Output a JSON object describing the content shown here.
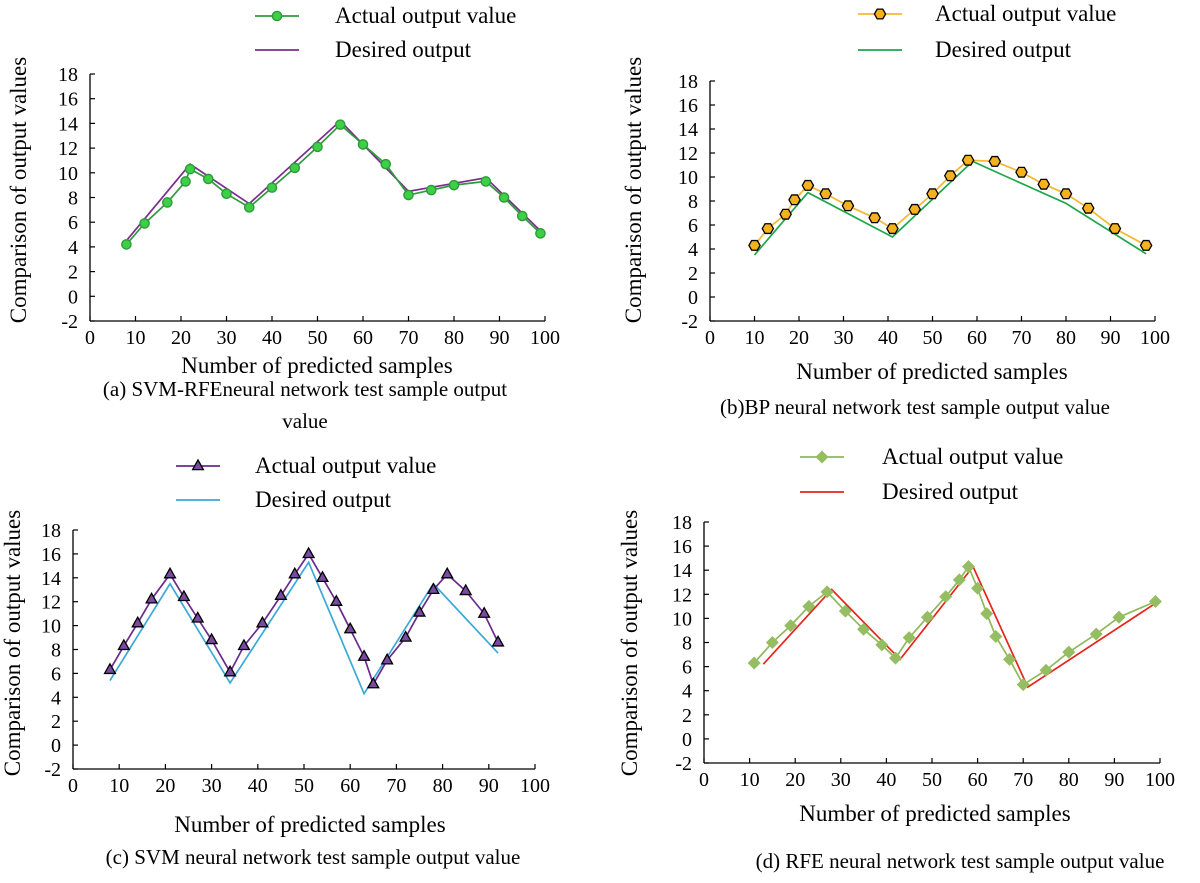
{
  "chart_data": [
    {
      "type": "line",
      "xlabel": "Number of predicted samples",
      "ylabel": "Comparison of output values",
      "xlim": [
        0,
        100
      ],
      "ylim": [
        -2,
        18
      ],
      "xticks": [
        "0",
        "10",
        "20",
        "30",
        "40",
        "50",
        "60",
        "70",
        "80",
        "90",
        "100"
      ],
      "yticks": [
        "-2",
        "0",
        "2",
        "4",
        "6",
        "8",
        "10",
        "12",
        "14",
        "16",
        "18"
      ],
      "grid": false,
      "legend_position": "top-center",
      "caption_lines": [
        "(a) SVM-RFEneural network test sample output",
        "value"
      ],
      "series": [
        {
          "name": "Actual output value",
          "color": "#2e9b3b",
          "marker": "circle",
          "marker_fill": "#3dd047",
          "x": [
            8,
            12,
            17,
            21,
            22,
            26,
            30,
            35,
            40,
            45,
            50,
            55,
            60,
            65,
            70,
            75,
            80,
            87,
            91,
            95,
            99
          ],
          "y": [
            4.2,
            5.9,
            7.6,
            9.3,
            10.3,
            9.5,
            8.3,
            7.2,
            8.8,
            10.4,
            12.1,
            13.9,
            12.3,
            10.7,
            8.2,
            8.6,
            9.0,
            9.3,
            8.0,
            6.5,
            5.1
          ]
        },
        {
          "name": "Desired output",
          "color": "#7b2d8e",
          "marker": "none",
          "x": [
            8,
            22,
            35,
            55,
            70,
            87,
            99
          ],
          "y": [
            4.5,
            10.7,
            7.5,
            14.2,
            8.5,
            9.6,
            5.3
          ]
        }
      ]
    },
    {
      "type": "line",
      "xlabel": "Number of predicted samples",
      "ylabel": "Comparison of output values",
      "xlim": [
        0,
        100
      ],
      "ylim": [
        -2,
        18
      ],
      "xticks": [
        "0",
        "10",
        "20",
        "30",
        "40",
        "50",
        "60",
        "70",
        "80",
        "90",
        "100"
      ],
      "yticks": [
        "-2",
        "0",
        "2",
        "4",
        "6",
        "8",
        "10",
        "12",
        "14",
        "16",
        "18"
      ],
      "grid": false,
      "legend_position": "top-center",
      "caption_lines": [
        "(b)BP neural network test sample output value"
      ],
      "series": [
        {
          "name": "Actual output value",
          "color": "#f2b82f",
          "marker": "hexagon",
          "marker_fill": "#f5b21e",
          "x": [
            10,
            13,
            17,
            19,
            22,
            26,
            31,
            37,
            41,
            46,
            50,
            54,
            58,
            64,
            70,
            75,
            80,
            85,
            91,
            98
          ],
          "y": [
            4.3,
            5.7,
            6.9,
            8.1,
            9.3,
            8.6,
            7.6,
            6.6,
            5.7,
            7.3,
            8.6,
            10.1,
            11.4,
            11.3,
            10.4,
            9.4,
            8.6,
            7.4,
            5.7,
            4.3
          ]
        },
        {
          "name": "Desired output",
          "color": "#1ea64a",
          "marker": "none",
          "x": [
            10,
            22,
            41,
            59,
            80,
            98
          ],
          "y": [
            3.5,
            8.7,
            5.0,
            11.3,
            7.8,
            3.6
          ]
        }
      ]
    },
    {
      "type": "line",
      "xlabel": "Number of predicted samples",
      "ylabel": "Comparison of output values",
      "xlim": [
        0,
        100
      ],
      "ylim": [
        -2,
        18
      ],
      "xticks": [
        "0",
        "10",
        "20",
        "30",
        "40",
        "50",
        "60",
        "70",
        "80",
        "90",
        "100"
      ],
      "yticks": [
        "-2",
        "0",
        "2",
        "4",
        "6",
        "8",
        "10",
        "12",
        "14",
        "16",
        "18"
      ],
      "grid": false,
      "legend_position": "top-center",
      "caption_lines": [
        "(c) SVM neural network test sample output value"
      ],
      "series": [
        {
          "name": "Actual output value",
          "color": "#6a2c8c",
          "marker": "triangle",
          "marker_fill": "#7a4aa0",
          "x": [
            8,
            11,
            14,
            17,
            21,
            24,
            27,
            30,
            34,
            37,
            41,
            45,
            48,
            51,
            54,
            57,
            60,
            63,
            65,
            68,
            72,
            75,
            78,
            81,
            85,
            89,
            92
          ],
          "y": [
            6.3,
            8.3,
            10.2,
            12.2,
            14.3,
            12.4,
            10.6,
            8.8,
            6.1,
            8.3,
            10.2,
            12.5,
            14.3,
            16.0,
            14.0,
            12.0,
            9.7,
            7.4,
            5.1,
            7.1,
            9.0,
            11.1,
            13.0,
            14.3,
            12.9,
            11.0,
            8.6
          ]
        },
        {
          "name": "Desired output",
          "color": "#3ba8d8",
          "marker": "none",
          "x": [
            8,
            21,
            34,
            51,
            63,
            78,
            92
          ],
          "y": [
            5.4,
            13.5,
            5.2,
            15.3,
            4.3,
            13.5,
            7.7
          ]
        }
      ]
    },
    {
      "type": "line",
      "xlabel": "Number of predicted samples",
      "ylabel": "Comparison of output values",
      "xlim": [
        0,
        100
      ],
      "ylim": [
        -2,
        18
      ],
      "xticks": [
        "0",
        "10",
        "20",
        "30",
        "40",
        "50",
        "60",
        "70",
        "80",
        "90",
        "100"
      ],
      "yticks": [
        "-2",
        "0",
        "2",
        "4",
        "6",
        "8",
        "10",
        "12",
        "14",
        "16",
        "18"
      ],
      "grid": false,
      "legend_position": "top-center",
      "caption_lines": [
        "(d) RFE neural network test sample output value"
      ],
      "series": [
        {
          "name": "Actual output value",
          "color": "#8fb85a",
          "marker": "diamond",
          "marker_fill": "#95bd62",
          "x": [
            11,
            15,
            19,
            23,
            27,
            31,
            35,
            39,
            42,
            45,
            49,
            53,
            56,
            58,
            60,
            62,
            64,
            67,
            70,
            75,
            80,
            86,
            91,
            99
          ],
          "y": [
            6.3,
            8.0,
            9.4,
            11.0,
            12.2,
            10.6,
            9.1,
            7.8,
            6.7,
            8.4,
            10.1,
            11.8,
            13.2,
            14.3,
            12.5,
            10.4,
            8.5,
            6.6,
            4.5,
            5.7,
            7.2,
            8.7,
            10.1,
            11.4
          ]
        },
        {
          "name": "Desired output",
          "color": "#e8231a",
          "marker": "none",
          "x": [
            13,
            28,
            43,
            59,
            71,
            100
          ],
          "y": [
            6.2,
            12.4,
            6.6,
            14.3,
            4.3,
            11.5
          ]
        }
      ]
    }
  ]
}
